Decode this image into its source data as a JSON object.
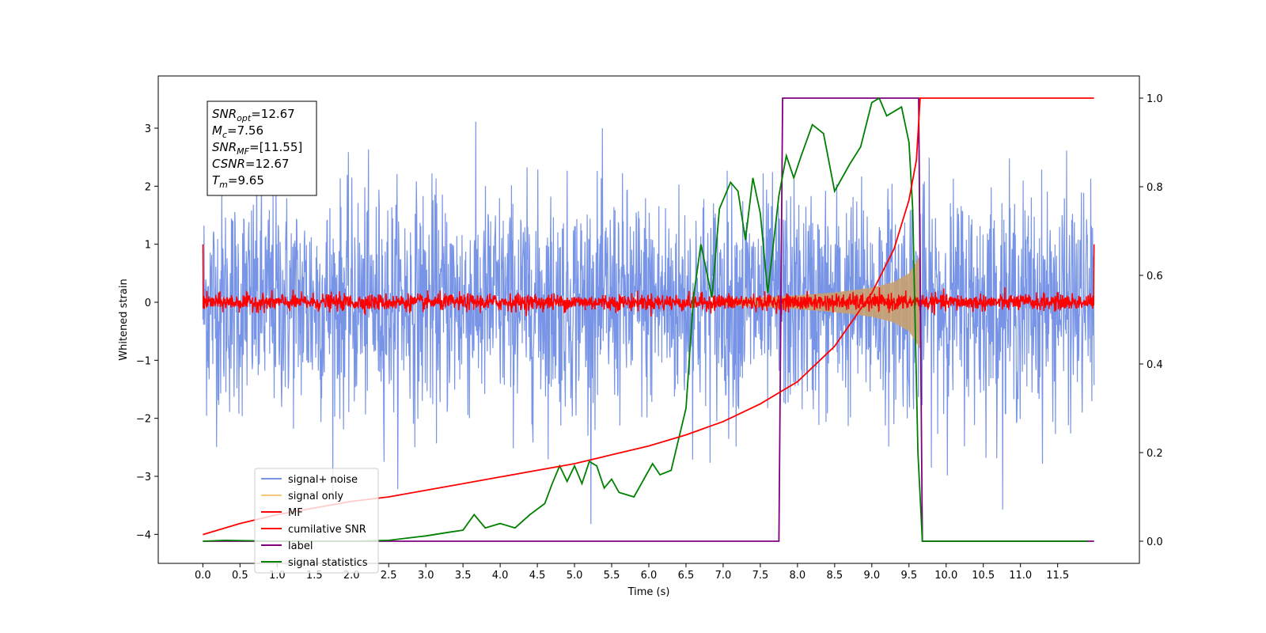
{
  "chart_data": {
    "type": "line",
    "xlabel": "Time (s)",
    "ylabel": "Whitened strain",
    "xlim": [
      -0.6,
      12.6
    ],
    "ylim_left": [
      -4.5,
      3.9
    ],
    "ylim_right": [
      -0.05,
      1.05
    ],
    "x_ticks": [
      "0.0",
      "0.5",
      "1.0",
      "1.5",
      "2.0",
      "2.5",
      "3.0",
      "3.5",
      "4.0",
      "4.5",
      "5.0",
      "5.5",
      "6.0",
      "6.5",
      "7.0",
      "7.5",
      "8.0",
      "8.5",
      "9.0",
      "9.5",
      "10.0",
      "10.5",
      "11.0",
      "11.5"
    ],
    "y_ticks_left": [
      "3",
      "2",
      "1",
      "0",
      "−1",
      "−2",
      "−3",
      "−4"
    ],
    "y_ticks_right": [
      "1.0",
      "0.8",
      "0.6",
      "0.4",
      "0.2",
      "0.0"
    ],
    "legend": {
      "position": "lower-left",
      "entries": [
        {
          "label": "signal+ noise",
          "color": "#7894e6"
        },
        {
          "label": "signal only",
          "color": "#f5c878"
        },
        {
          "label": "MF",
          "color": "#ff0000"
        },
        {
          "label": "cumilative SNR",
          "color": "#ff0000"
        },
        {
          "label": "label",
          "color": "#800080"
        },
        {
          "label": "signal statistics",
          "color": "#008000"
        }
      ]
    },
    "annotation": {
      "lines": [
        {
          "base": "SNR",
          "sub": "opt",
          "value": "=12.67"
        },
        {
          "base": "M",
          "sub": "c",
          "value": "=7.56"
        },
        {
          "base": "SNR",
          "sub": "MF",
          "value": "=[11.55]"
        },
        {
          "base": "CSNR",
          "sub": "",
          "value": "=12.67"
        },
        {
          "base": "T",
          "sub": "m",
          "value": "=9.65"
        }
      ]
    },
    "series": [
      {
        "name": "signal+ noise",
        "axis": "left",
        "color": "#7894e6",
        "description": "noise-dominated whitened strain, approx range",
        "x_range": [
          0.0,
          11.99
        ],
        "y_min": -4.2,
        "y_max": 3.5
      },
      {
        "name": "signal only",
        "axis": "left",
        "color": "#c8a070",
        "envelope_x": [
          7.0,
          7.5,
          8.0,
          8.5,
          9.0,
          9.3,
          9.5,
          9.65
        ],
        "envelope_amp": [
          0.05,
          0.08,
          0.12,
          0.17,
          0.25,
          0.35,
          0.5,
          0.8
        ]
      },
      {
        "name": "MF",
        "axis": "left",
        "color": "#ff0000",
        "x_range": [
          0.0,
          11.99
        ],
        "typical_amp": 0.12
      },
      {
        "name": "cumilative SNR",
        "axis": "right",
        "color": "#ff0000",
        "x": [
          0.0,
          0.5,
          1.0,
          1.5,
          2.0,
          2.5,
          3.0,
          3.5,
          4.0,
          4.5,
          5.0,
          5.5,
          6.0,
          6.5,
          7.0,
          7.5,
          8.0,
          8.5,
          9.0,
          9.3,
          9.5,
          9.6,
          9.65
        ],
        "y": [
          0.015,
          0.04,
          0.06,
          0.075,
          0.09,
          0.1,
          0.115,
          0.13,
          0.145,
          0.16,
          0.175,
          0.195,
          0.215,
          0.24,
          0.27,
          0.31,
          0.36,
          0.44,
          0.56,
          0.66,
          0.77,
          0.86,
          1.0
        ]
      },
      {
        "name": "label",
        "axis": "right",
        "color": "#800080",
        "x": [
          0.0,
          7.75,
          7.8,
          9.63,
          9.68,
          11.99
        ],
        "y": [
          0.0,
          0.0,
          1.0,
          1.0,
          0.0,
          0.0
        ]
      },
      {
        "name": "signal statistics",
        "axis": "right",
        "color": "#008000",
        "x": [
          0.0,
          0.3,
          1.0,
          2.0,
          2.5,
          2.9,
          3.0,
          3.3,
          3.5,
          3.65,
          3.8,
          4.0,
          4.2,
          4.4,
          4.6,
          4.7,
          4.8,
          4.9,
          5.0,
          5.1,
          5.2,
          5.3,
          5.4,
          5.5,
          5.6,
          5.8,
          5.9,
          6.05,
          6.15,
          6.3,
          6.5,
          6.6,
          6.7,
          6.85,
          6.95,
          7.1,
          7.2,
          7.3,
          7.4,
          7.5,
          7.6,
          7.75,
          7.85,
          7.95,
          8.05,
          8.2,
          8.35,
          8.5,
          8.7,
          8.85,
          9.0,
          9.1,
          9.2,
          9.3,
          9.4,
          9.5,
          9.55,
          9.62,
          9.68,
          10.0,
          11.0,
          11.9
        ],
        "y": [
          0.0,
          0.002,
          0.0,
          0.0,
          0.002,
          0.01,
          0.012,
          0.02,
          0.025,
          0.06,
          0.03,
          0.04,
          0.03,
          0.06,
          0.085,
          0.13,
          0.17,
          0.135,
          0.17,
          0.13,
          0.18,
          0.17,
          0.12,
          0.14,
          0.11,
          0.1,
          0.13,
          0.175,
          0.15,
          0.16,
          0.3,
          0.55,
          0.67,
          0.55,
          0.75,
          0.81,
          0.79,
          0.68,
          0.82,
          0.74,
          0.56,
          0.78,
          0.87,
          0.82,
          0.87,
          0.94,
          0.92,
          0.79,
          0.85,
          0.89,
          0.99,
          1.0,
          0.96,
          0.97,
          0.98,
          0.9,
          0.75,
          0.2,
          0.0,
          0.0,
          0.0,
          0.0
        ]
      }
    ]
  }
}
